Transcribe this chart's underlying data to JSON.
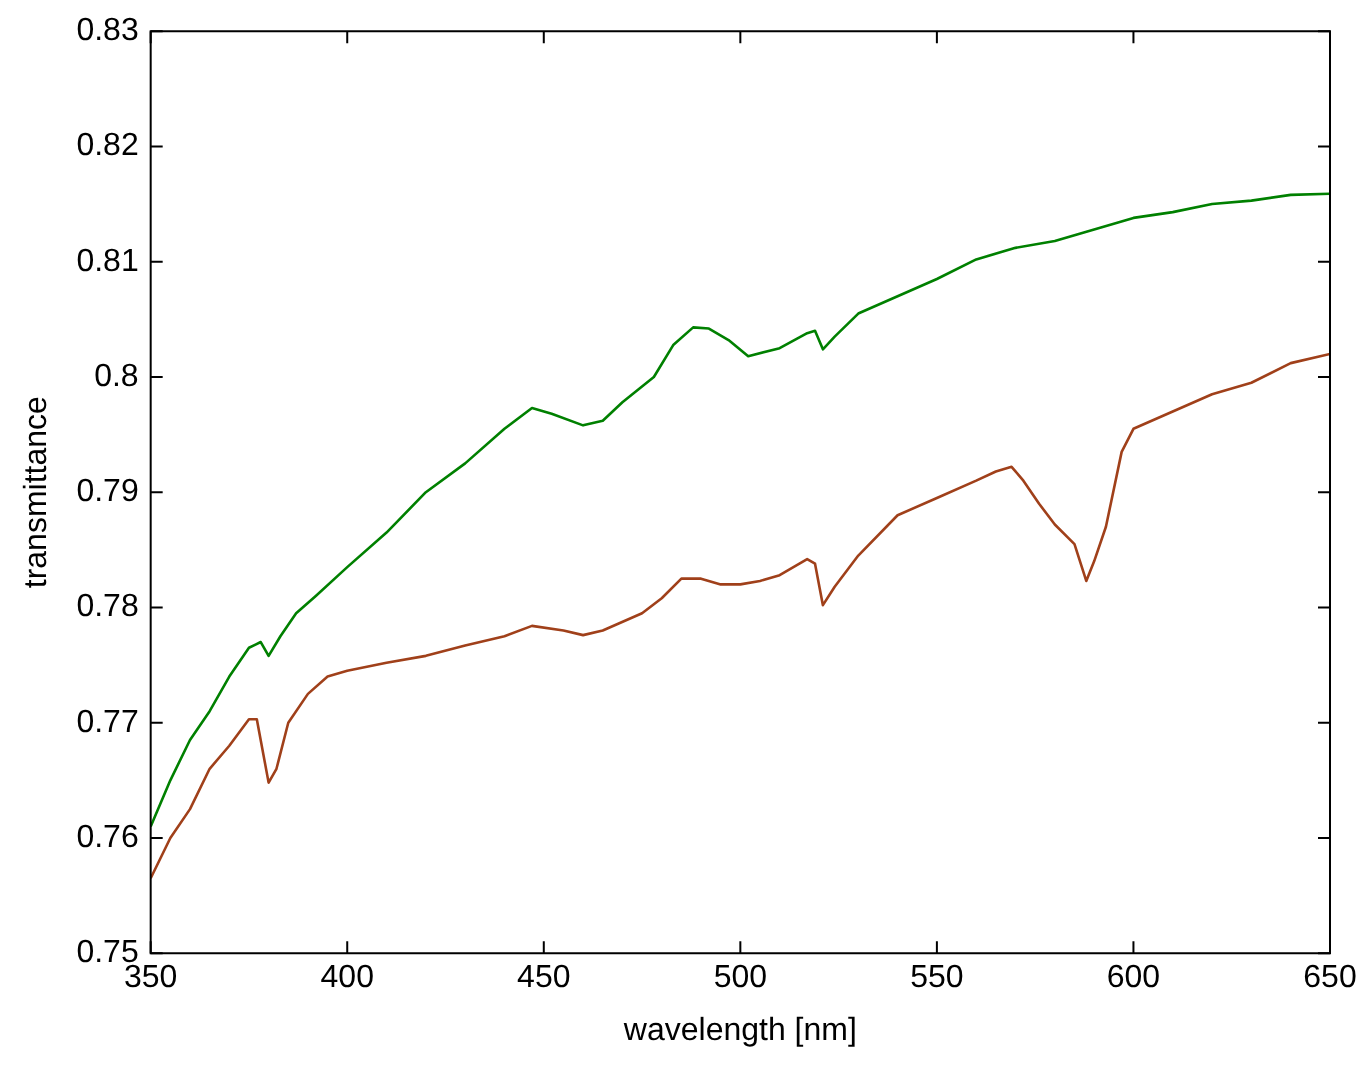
{
  "chart_data": {
    "type": "line",
    "xlabel": "wavelength [nm]",
    "ylabel": "transmittance",
    "xlim": [
      350,
      650
    ],
    "xticks": [
      350,
      400,
      450,
      500,
      550,
      600,
      650
    ],
    "ylim": [
      0.75,
      0.83
    ],
    "yticks": [
      0.75,
      0.76,
      0.77,
      0.78,
      0.79,
      0.8,
      0.81,
      0.82,
      0.83
    ],
    "grid": false,
    "marker": "none",
    "line_style": "solid",
    "series": [
      {
        "color": "#008000",
        "x": [
          350,
          355,
          360,
          365,
          370,
          375,
          378,
          380,
          383,
          387,
          392,
          400,
          410,
          420,
          430,
          440,
          447,
          452,
          460,
          465,
          470,
          478,
          483,
          488,
          492,
          497,
          502,
          510,
          517,
          519,
          521,
          524,
          530,
          540,
          550,
          560,
          570,
          580,
          590,
          600,
          610,
          620,
          630,
          640,
          650
        ],
        "values": [
          0.761,
          0.765,
          0.7685,
          0.771,
          0.774,
          0.7765,
          0.777,
          0.7758,
          0.7775,
          0.7795,
          0.781,
          0.7835,
          0.7865,
          0.79,
          0.7925,
          0.7955,
          0.7973,
          0.7968,
          0.7958,
          0.7962,
          0.7978,
          0.8,
          0.8028,
          0.8043,
          0.8042,
          0.8032,
          0.8018,
          0.8025,
          0.8038,
          0.804,
          0.8024,
          0.8035,
          0.8055,
          0.807,
          0.8085,
          0.8102,
          0.8112,
          0.8118,
          0.8128,
          0.8138,
          0.8143,
          0.815,
          0.8153,
          0.8158,
          0.8159
        ]
      },
      {
        "color": "#a0401a",
        "x": [
          350,
          355,
          360,
          365,
          370,
          375,
          377,
          380,
          382,
          385,
          390,
          395,
          400,
          410,
          420,
          430,
          440,
          447,
          455,
          460,
          465,
          475,
          480,
          485,
          490,
          495,
          500,
          505,
          510,
          517,
          519,
          521,
          524,
          530,
          540,
          550,
          560,
          565,
          569,
          572,
          576,
          580,
          585,
          588,
          590,
          593,
          597,
          600,
          610,
          620,
          630,
          640,
          650
        ],
        "values": [
          0.7565,
          0.76,
          0.7625,
          0.766,
          0.768,
          0.7703,
          0.7703,
          0.7648,
          0.766,
          0.77,
          0.7725,
          0.774,
          0.7745,
          0.7752,
          0.7758,
          0.7767,
          0.7775,
          0.7784,
          0.778,
          0.7776,
          0.778,
          0.7795,
          0.7808,
          0.7825,
          0.7825,
          0.782,
          0.782,
          0.7823,
          0.7828,
          0.7842,
          0.7838,
          0.7802,
          0.7818,
          0.7845,
          0.788,
          0.7895,
          0.791,
          0.7918,
          0.7922,
          0.791,
          0.789,
          0.7872,
          0.7855,
          0.7823,
          0.784,
          0.787,
          0.7935,
          0.7955,
          0.797,
          0.7985,
          0.7995,
          0.8012,
          0.802
        ]
      }
    ]
  }
}
